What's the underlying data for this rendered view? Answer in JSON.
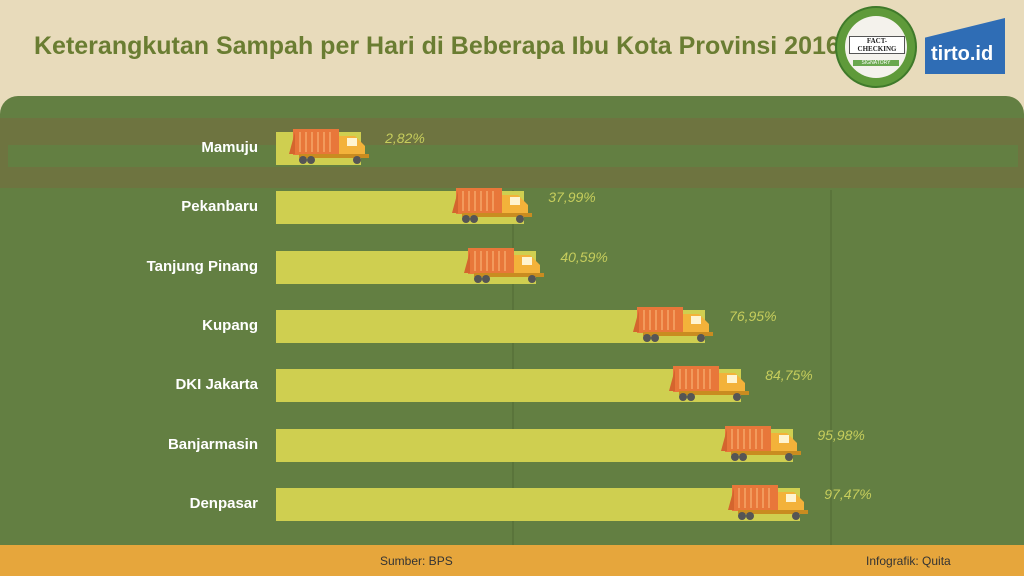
{
  "title": "Keterangkutan Sampah per Hari di Beberapa Ibu Kota Provinsi 2016",
  "logos": {
    "ifcn": "INTERNATIONAL FACT-CHECKING NETWORK SIGNATORY",
    "tirto": "tirto.id"
  },
  "chart_data": {
    "type": "bar",
    "orientation": "horizontal",
    "title": "Keterangkutan Sampah per Hari di Beberapa Ibu Kota Provinsi 2016",
    "categories": [
      "Mamuju",
      "Pekanbaru",
      "Tanjung Pinang",
      "Kupang",
      "DKI Jakarta",
      "Banjarmasin",
      "Denpasar"
    ],
    "values": [
      2.82,
      37.99,
      40.59,
      76.95,
      84.75,
      95.98,
      97.47
    ],
    "value_labels": [
      "2,82%",
      "37,99%",
      "40,59%",
      "76,95%",
      "84,75%",
      "95,98%",
      "97,47%"
    ],
    "unit": "%",
    "xlim": [
      0,
      100
    ],
    "bar_color": "#cfcf50",
    "marker": "garbage-truck"
  },
  "footer": {
    "source": "Sumber: BPS",
    "credit": "Infografik: Quita"
  }
}
